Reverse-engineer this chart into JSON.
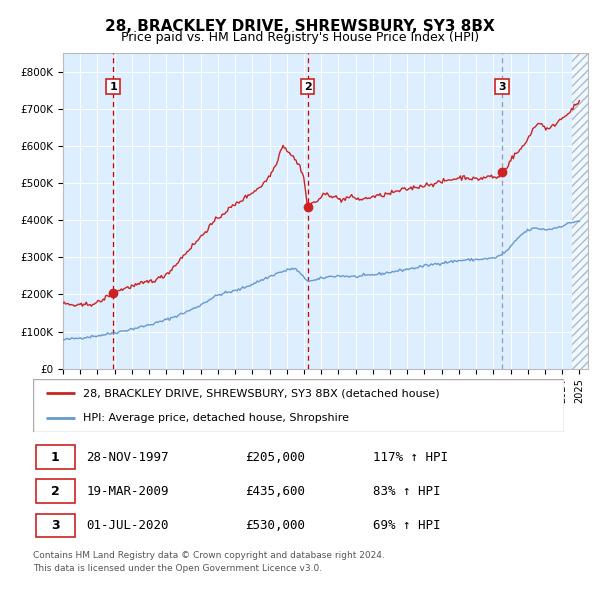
{
  "title": "28, BRACKLEY DRIVE, SHREWSBURY, SY3 8BX",
  "subtitle": "Price paid vs. HM Land Registry's House Price Index (HPI)",
  "hpi_label": "HPI: Average price, detached house, Shropshire",
  "property_label": "28, BRACKLEY DRIVE, SHREWSBURY, SY3 8BX (detached house)",
  "footer1": "Contains HM Land Registry data © Crown copyright and database right 2024.",
  "footer2": "This data is licensed under the Open Government Licence v3.0.",
  "xlim": [
    1995.0,
    2025.5
  ],
  "ylim": [
    0,
    850000
  ],
  "yticks": [
    0,
    100000,
    200000,
    300000,
    400000,
    500000,
    600000,
    700000,
    800000
  ],
  "ytick_labels": [
    "£0",
    "£100K",
    "£200K",
    "£300K",
    "£400K",
    "£500K",
    "£600K",
    "£700K",
    "£800K"
  ],
  "xticks": [
    1995,
    1996,
    1997,
    1998,
    1999,
    2000,
    2001,
    2002,
    2003,
    2004,
    2005,
    2006,
    2007,
    2008,
    2009,
    2010,
    2011,
    2012,
    2013,
    2014,
    2015,
    2016,
    2017,
    2018,
    2019,
    2020,
    2021,
    2022,
    2023,
    2024,
    2025
  ],
  "sales": [
    {
      "date": 1997.91,
      "price": 205000,
      "label": "1"
    },
    {
      "date": 2009.21,
      "price": 435600,
      "label": "2"
    },
    {
      "date": 2020.5,
      "price": 530000,
      "label": "3"
    }
  ],
  "vline_colors": [
    "#cc0000",
    "#cc0000",
    "#9999aa"
  ],
  "table_rows": [
    {
      "num": "1",
      "date": "28-NOV-1997",
      "price": "£205,000",
      "hpi": "117% ↑ HPI"
    },
    {
      "num": "2",
      "date": "19-MAR-2009",
      "price": "£435,600",
      "hpi": "83% ↑ HPI"
    },
    {
      "num": "3",
      "date": "01-JUL-2020",
      "price": "£530,000",
      "hpi": "69% ↑ HPI"
    }
  ],
  "red_line_color": "#cc2222",
  "blue_line_color": "#6699cc",
  "bg_color": "#ddeeff",
  "hatch_color": "#aabbcc",
  "hpi_anchors": [
    [
      1995.0,
      78000
    ],
    [
      1996.0,
      83000
    ],
    [
      1997.0,
      89000
    ],
    [
      1998.0,
      97000
    ],
    [
      1999.0,
      107000
    ],
    [
      2000.0,
      118000
    ],
    [
      2001.0,
      132000
    ],
    [
      2002.0,
      150000
    ],
    [
      2003.0,
      172000
    ],
    [
      2004.0,
      198000
    ],
    [
      2005.0,
      210000
    ],
    [
      2005.5,
      218000
    ],
    [
      2006.0,
      228000
    ],
    [
      2006.5,
      238000
    ],
    [
      2007.0,
      248000
    ],
    [
      2007.5,
      258000
    ],
    [
      2008.0,
      265000
    ],
    [
      2008.5,
      268000
    ],
    [
      2009.0,
      245000
    ],
    [
      2009.5,
      237000
    ],
    [
      2010.0,
      243000
    ],
    [
      2010.5,
      248000
    ],
    [
      2011.0,
      250000
    ],
    [
      2011.5,
      249000
    ],
    [
      2012.0,
      248000
    ],
    [
      2012.5,
      250000
    ],
    [
      2013.0,
      253000
    ],
    [
      2013.5,
      256000
    ],
    [
      2014.0,
      260000
    ],
    [
      2014.5,
      264000
    ],
    [
      2015.0,
      268000
    ],
    [
      2015.5,
      272000
    ],
    [
      2016.0,
      277000
    ],
    [
      2016.5,
      281000
    ],
    [
      2017.0,
      285000
    ],
    [
      2017.5,
      288000
    ],
    [
      2018.0,
      291000
    ],
    [
      2018.5,
      293000
    ],
    [
      2019.0,
      294000
    ],
    [
      2019.5,
      296000
    ],
    [
      2020.0,
      298000
    ],
    [
      2020.5,
      308000
    ],
    [
      2021.0,
      328000
    ],
    [
      2021.5,
      355000
    ],
    [
      2022.0,
      372000
    ],
    [
      2022.5,
      378000
    ],
    [
      2023.0,
      375000
    ],
    [
      2023.5,
      378000
    ],
    [
      2024.0,
      385000
    ],
    [
      2024.5,
      393000
    ],
    [
      2025.0,
      398000
    ]
  ],
  "red_anchors": [
    [
      1995.0,
      175000
    ],
    [
      1995.5,
      172000
    ],
    [
      1996.0,
      170000
    ],
    [
      1996.5,
      174000
    ],
    [
      1997.0,
      178000
    ],
    [
      1997.5,
      192000
    ],
    [
      1997.91,
      205000
    ],
    [
      1998.2,
      210000
    ],
    [
      1998.5,
      215000
    ],
    [
      1999.0,
      222000
    ],
    [
      1999.5,
      228000
    ],
    [
      2000.0,
      235000
    ],
    [
      2000.5,
      242000
    ],
    [
      2001.0,
      255000
    ],
    [
      2001.5,
      278000
    ],
    [
      2002.0,
      305000
    ],
    [
      2002.5,
      330000
    ],
    [
      2003.0,
      355000
    ],
    [
      2003.5,
      382000
    ],
    [
      2004.0,
      405000
    ],
    [
      2004.5,
      425000
    ],
    [
      2005.0,
      442000
    ],
    [
      2005.5,
      458000
    ],
    [
      2006.0,
      475000
    ],
    [
      2006.5,
      492000
    ],
    [
      2007.0,
      520000
    ],
    [
      2007.5,
      568000
    ],
    [
      2007.8,
      600000
    ],
    [
      2008.0,
      590000
    ],
    [
      2008.3,
      575000
    ],
    [
      2008.6,
      555000
    ],
    [
      2008.9,
      530000
    ],
    [
      2009.0,
      510000
    ],
    [
      2009.21,
      435600
    ],
    [
      2009.4,
      440000
    ],
    [
      2009.7,
      450000
    ],
    [
      2010.0,
      462000
    ],
    [
      2010.3,
      470000
    ],
    [
      2010.6,
      467000
    ],
    [
      2010.9,
      460000
    ],
    [
      2011.2,
      455000
    ],
    [
      2011.5,
      460000
    ],
    [
      2011.8,
      462000
    ],
    [
      2012.1,
      458000
    ],
    [
      2012.4,
      456000
    ],
    [
      2012.7,
      460000
    ],
    [
      2013.0,
      463000
    ],
    [
      2013.3,
      465000
    ],
    [
      2013.6,
      468000
    ],
    [
      2014.0,
      472000
    ],
    [
      2014.3,
      476000
    ],
    [
      2014.6,
      480000
    ],
    [
      2015.0,
      484000
    ],
    [
      2015.3,
      487000
    ],
    [
      2015.6,
      490000
    ],
    [
      2016.0,
      494000
    ],
    [
      2016.3,
      497000
    ],
    [
      2016.6,
      499000
    ],
    [
      2017.0,
      503000
    ],
    [
      2017.3,
      507000
    ],
    [
      2017.6,
      510000
    ],
    [
      2018.0,
      514000
    ],
    [
      2018.3,
      516000
    ],
    [
      2018.6,
      514000
    ],
    [
      2019.0,
      510000
    ],
    [
      2019.3,
      513000
    ],
    [
      2019.6,
      516000
    ],
    [
      2019.9,
      518000
    ],
    [
      2020.2,
      514000
    ],
    [
      2020.5,
      530000
    ],
    [
      2020.8,
      545000
    ],
    [
      2021.0,
      562000
    ],
    [
      2021.3,
      578000
    ],
    [
      2021.6,
      592000
    ],
    [
      2021.9,
      610000
    ],
    [
      2022.2,
      638000
    ],
    [
      2022.5,
      655000
    ],
    [
      2022.7,
      662000
    ],
    [
      2023.0,
      650000
    ],
    [
      2023.2,
      645000
    ],
    [
      2023.5,
      655000
    ],
    [
      2023.8,
      668000
    ],
    [
      2024.0,
      675000
    ],
    [
      2024.3,
      688000
    ],
    [
      2024.6,
      700000
    ],
    [
      2024.9,
      715000
    ],
    [
      2025.0,
      720000
    ]
  ]
}
